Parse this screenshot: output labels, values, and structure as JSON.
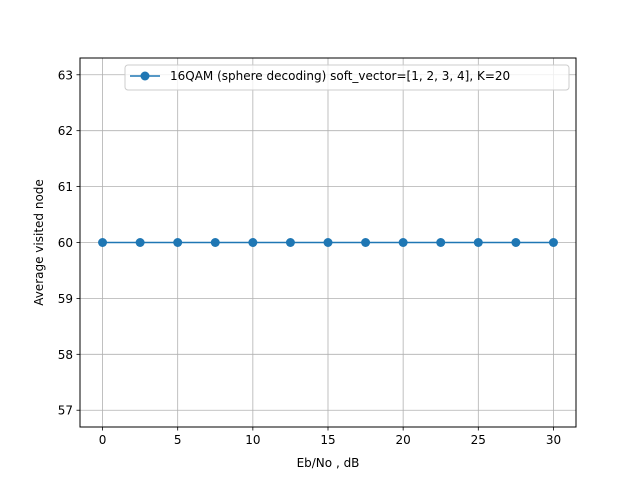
{
  "chart_data": {
    "type": "line",
    "xlabel": "Eb/No , dB",
    "ylabel": "Average visited node",
    "xlim": [
      -1.5,
      31.5
    ],
    "ylim": [
      56.7,
      63.3
    ],
    "xticks": [
      0,
      5,
      10,
      15,
      20,
      25,
      30
    ],
    "yticks": [
      57,
      58,
      59,
      60,
      61,
      62,
      63
    ],
    "grid": true,
    "legend_position": "top-right",
    "series": [
      {
        "name": "16QAM (sphere decoding) soft_vector=[1, 2, 3, 4], K=20",
        "color": "#1f77b4",
        "marker": "circle",
        "x": [
          0,
          2.5,
          5,
          7.5,
          10,
          12.5,
          15,
          17.5,
          20,
          22.5,
          25,
          27.5,
          30
        ],
        "y": [
          60,
          60,
          60,
          60,
          60,
          60,
          60,
          60,
          60,
          60,
          60,
          60,
          60
        ]
      }
    ]
  }
}
